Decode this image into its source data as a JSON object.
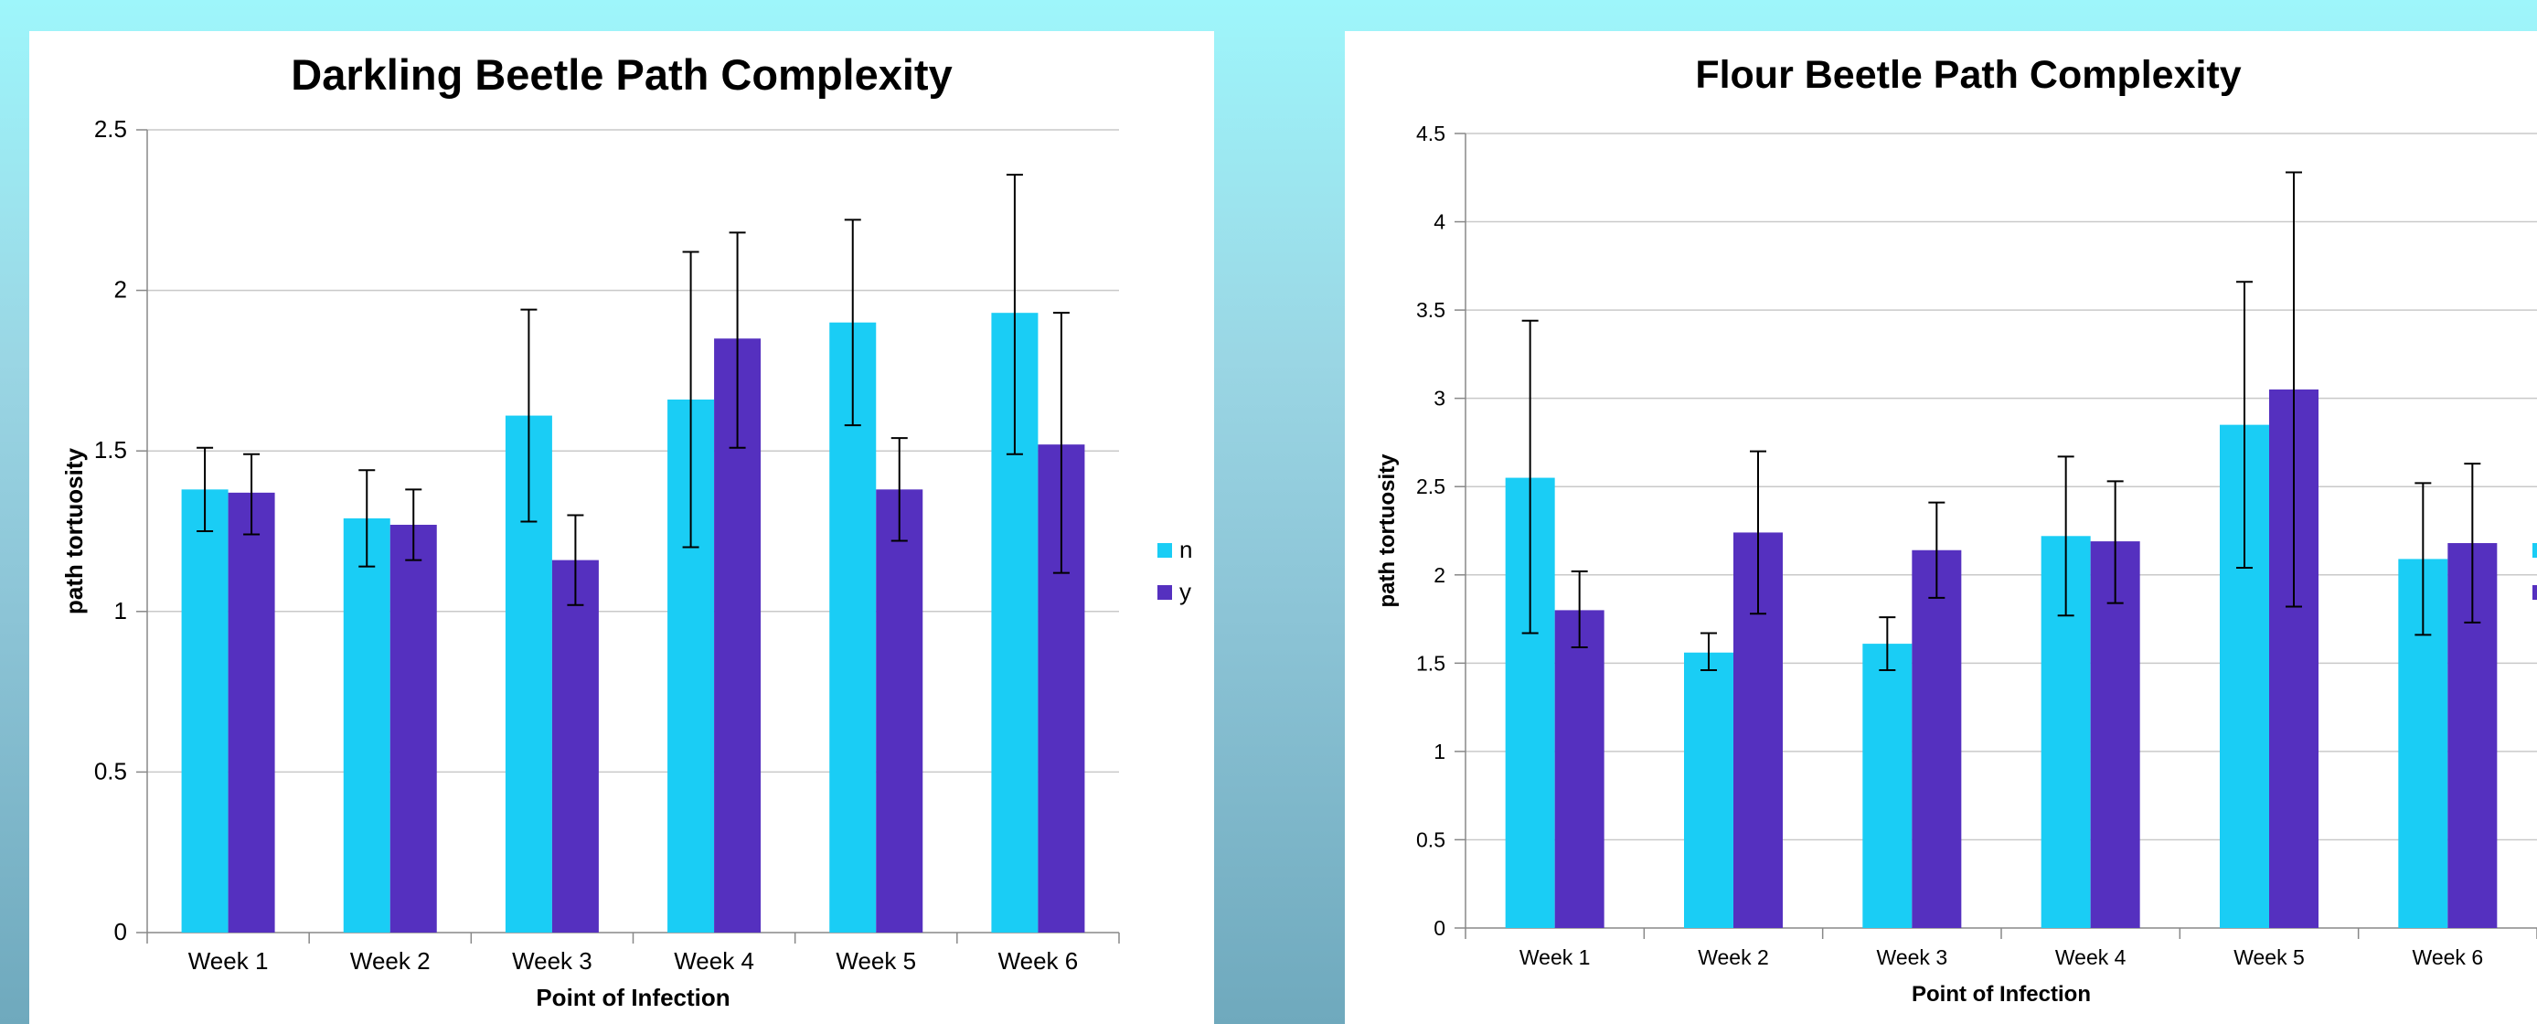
{
  "colors": {
    "n": "#1acdf5",
    "y": "#5530bf",
    "grid": "#c9c9c9",
    "axis": "#888888"
  },
  "chart_data": [
    {
      "type": "bar",
      "title": "Darkling Beetle Path Complexity",
      "xlabel": "Point of Infection",
      "ylabel": "path tortuosity",
      "categories": [
        "Week 1",
        "Week 2",
        "Week 3",
        "Week 4",
        "Week 5",
        "Week 6"
      ],
      "ylim": [
        0,
        2.5
      ],
      "yticks": [
        "0",
        "0.5",
        "1",
        "1.5",
        "2",
        "2.5"
      ],
      "grid": true,
      "legend": "right",
      "series": [
        {
          "name": "n",
          "values": [
            1.38,
            1.29,
            1.61,
            1.66,
            1.9,
            1.93
          ],
          "err_low": [
            1.25,
            1.14,
            1.28,
            1.2,
            1.58,
            1.49
          ],
          "err_high": [
            1.51,
            1.44,
            1.94,
            2.12,
            2.22,
            2.36
          ]
        },
        {
          "name": "y",
          "values": [
            1.37,
            1.27,
            1.16,
            1.85,
            1.38,
            1.52
          ],
          "err_low": [
            1.24,
            1.16,
            1.02,
            1.51,
            1.22,
            1.12
          ],
          "err_high": [
            1.49,
            1.38,
            1.3,
            2.18,
            1.54,
            1.93
          ]
        }
      ]
    },
    {
      "type": "bar",
      "title": "Flour Beetle Path Complexity",
      "xlabel": "Point of Infection",
      "ylabel": "path tortuosity",
      "categories": [
        "Week 1",
        "Week 2",
        "Week 3",
        "Week 4",
        "Week 5",
        "Week 6"
      ],
      "ylim": [
        0,
        4.5
      ],
      "yticks": [
        "0",
        "0.5",
        "1",
        "1.5",
        "2",
        "2.5",
        "3",
        "3.5",
        "4",
        "4.5"
      ],
      "grid": true,
      "legend": "right (cropped)",
      "series": [
        {
          "values": [
            2.55,
            1.56,
            1.61,
            2.22,
            2.85,
            2.09
          ],
          "err_low": [
            1.67,
            1.46,
            1.46,
            1.77,
            2.04,
            1.66
          ],
          "err_high": [
            3.44,
            1.67,
            1.76,
            2.67,
            3.66,
            2.52
          ]
        },
        {
          "values": [
            1.8,
            2.24,
            2.14,
            2.19,
            3.05,
            2.18
          ],
          "err_low": [
            1.59,
            1.78,
            1.87,
            1.84,
            1.82,
            1.73
          ],
          "err_high": [
            2.02,
            2.7,
            2.41,
            2.53,
            4.28,
            2.63
          ]
        }
      ]
    }
  ]
}
